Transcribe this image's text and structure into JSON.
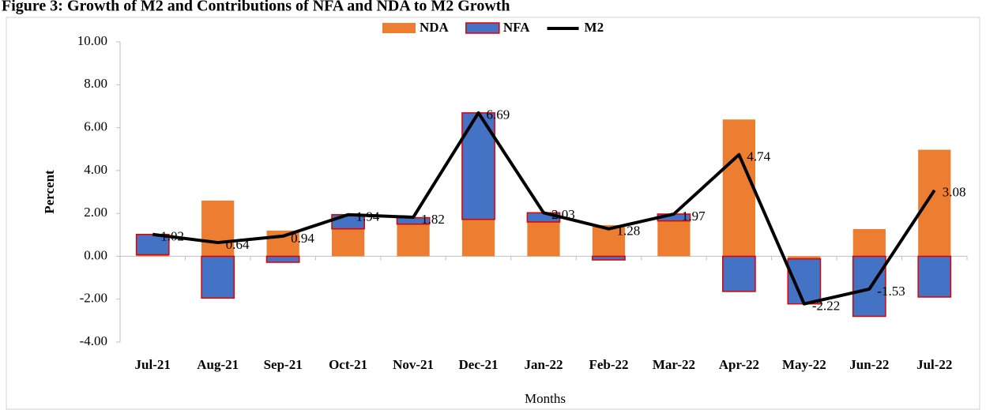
{
  "chart_data": {
    "type": "bar",
    "title": "Figure 3: Growth of M2 and Contributions of NFA and NDA to M2 Growth",
    "x_label": "Months",
    "y_label": "Percent",
    "categories": [
      "Jul-21",
      "Aug-21",
      "Sep-21",
      "Oct-21",
      "Nov-21",
      "Dec-21",
      "Jan-22",
      "Feb-22",
      "Mar-22",
      "Apr-22",
      "May-22",
      "Jun-22",
      "Jul-22"
    ],
    "series": [
      {
        "name": "NDA",
        "type": "bar",
        "color": "#ed7d31",
        "values": [
          0.07,
          2.6,
          1.2,
          1.28,
          1.5,
          1.72,
          1.6,
          1.45,
          1.65,
          6.38,
          -0.12,
          1.27,
          4.97
        ]
      },
      {
        "name": "NFA",
        "type": "bar",
        "color": "#4472c4",
        "edge_color": "#e00000",
        "values": [
          0.95,
          -1.95,
          -0.28,
          0.66,
          0.3,
          4.97,
          0.43,
          -0.17,
          0.32,
          -1.64,
          -2.1,
          -2.8,
          -1.9
        ]
      },
      {
        "name": "M2",
        "type": "line",
        "color": "#000000",
        "values": [
          1.02,
          0.64,
          0.94,
          1.94,
          1.82,
          6.69,
          2.03,
          1.28,
          1.97,
          4.74,
          -2.22,
          -1.53,
          3.08
        ]
      }
    ],
    "ylim": [
      -4,
      10
    ],
    "yticks": [
      {
        "value": -4,
        "label": "-4.00"
      },
      {
        "value": -2,
        "label": "-2.00"
      },
      {
        "value": 0,
        "label": "0.00"
      },
      {
        "value": 2,
        "label": "2.00"
      },
      {
        "value": 4,
        "label": "4.00"
      },
      {
        "value": 6,
        "label": "6.00"
      },
      {
        "value": 8,
        "label": "8.00"
      },
      {
        "value": 10,
        "label": "10.00"
      }
    ],
    "grid": false,
    "legend": "top",
    "data_labels": true
  }
}
